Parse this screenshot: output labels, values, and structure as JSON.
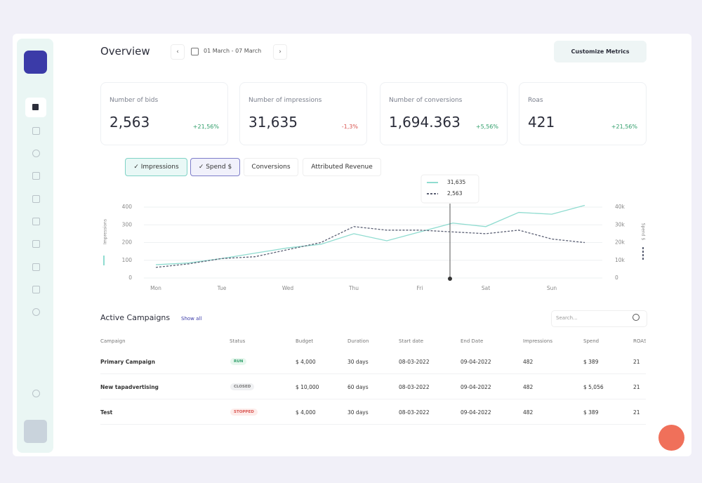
{
  "header": {
    "title": "Overview",
    "date_range": "01 March - 07 March",
    "button": "Customize Metrics"
  },
  "kpis": [
    {
      "label": "Number of bids",
      "value": "2,563",
      "change": "+21,56%",
      "color": "#2f9e6a"
    },
    {
      "label": "Number of impressions",
      "value": "31,635",
      "change": "-1,3%",
      "color": "#d9534f"
    },
    {
      "label": "Number of conversions",
      "value": "1,694.363",
      "change": "+5,56%",
      "color": "#2f9e6a"
    },
    {
      "label": "Roas",
      "value": "421",
      "change": "+21,56%",
      "color": "#2f9e6a"
    }
  ],
  "chart_data": {
    "type": "line",
    "toggles": [
      "Impressions",
      "Spend $",
      "Conversions",
      "Attributed Revenue"
    ],
    "y_label": "Impressions",
    "y2_label": "Spend $",
    "categories": [
      "Mon",
      null,
      "Tue",
      null,
      "Wed",
      null,
      "Thu",
      null,
      "Fri",
      null,
      "Sat",
      null,
      "Sun",
      null
    ],
    "series": [
      {
        "name": "Impressions",
        "color": "#8fdcd0",
        "values": [
          75,
          85,
          110,
          140,
          170,
          190,
          250,
          210,
          260,
          310,
          290,
          370,
          360,
          410
        ]
      },
      {
        "name": "Spend $",
        "color": "#5a5f73",
        "axis": "y2",
        "values": [
          6000,
          8000,
          11000,
          12000,
          16000,
          20000,
          29000,
          27000,
          27000,
          26000,
          25000,
          27000,
          22000,
          20000
        ]
      }
    ],
    "ylim": [
      0,
      400
    ],
    "yticks": [
      0,
      100,
      200,
      300,
      400
    ],
    "y2lim": [
      0,
      40000
    ],
    "y2ticks": [
      0,
      {
        "value": 10000,
        "label": "10k"
      },
      {
        "value": 20000,
        "label": "20k"
      },
      {
        "value": 30000,
        "label": "30k"
      },
      {
        "value": 40000,
        "label": "40k"
      }
    ],
    "grid": true,
    "tooltip": [
      "31,635",
      "2,563"
    ]
  },
  "table": {
    "title": "Active Campaigns",
    "link": "Show all",
    "search": "Search...",
    "columns": [
      "Campaign",
      "Status",
      "Budget",
      "Duration",
      "Start date",
      "End Date",
      "Impressions",
      "Spend",
      "ROAS"
    ],
    "rows": [
      [
        "Primary Campaign",
        "RUN",
        "$ 4,000",
        "30 days",
        "08-03-2022",
        "09-04-2022",
        "482",
        "$ 389",
        "21"
      ],
      [
        "New tapadvertising",
        "CLOSED",
        "$ 10,000",
        "60 days",
        "08-03-2022",
        "09-04-2022",
        "482",
        "$ 5,056",
        "21"
      ],
      [
        "Test",
        "STOPPED",
        "$ 4,000",
        "30 days",
        "08-03-2022",
        "09-04-2022",
        "482",
        "$ 389",
        "21"
      ]
    ]
  }
}
